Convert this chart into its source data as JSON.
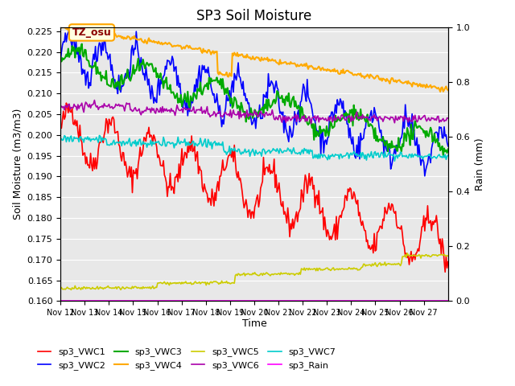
{
  "title": "SP3 Soil Moisture",
  "xlabel": "Time",
  "ylabel_left": "Soil Moisture (m3/m3)",
  "ylabel_right": "Rain (mm)",
  "ylim_left": [
    0.16,
    0.226
  ],
  "ylim_right": [
    0.0,
    1.0
  ],
  "xlim": [
    0,
    16
  ],
  "x_tick_labels": [
    "Nov 12",
    "Nov 13",
    "Nov 14",
    "Nov 15",
    "Nov 16",
    "Nov 17",
    "Nov 18",
    "Nov 19",
    "Nov 20",
    "Nov 21",
    "Nov 22",
    "Nov 23",
    "Nov 24",
    "Nov 25",
    "Nov 26",
    "Nov 27"
  ],
  "annotation_text": "TZ_osu",
  "bg_color": "#e8e8e8",
  "legend_labels": [
    "sp3_VWC1",
    "sp3_VWC2",
    "sp3_VWC3",
    "sp3_VWC4",
    "sp3_VWC5",
    "sp3_VWC6",
    "sp3_VWC7",
    "sp3_Rain"
  ],
  "colors": [
    "#ff0000",
    "#0000ff",
    "#00aa00",
    "#ffaa00",
    "#cccc00",
    "#aa00aa",
    "#00cccc",
    "#ff00ff"
  ],
  "linewidths": [
    1.2,
    1.2,
    1.5,
    1.5,
    1.2,
    1.2,
    1.2,
    1.2
  ],
  "yticks_left": [
    0.16,
    0.165,
    0.17,
    0.175,
    0.18,
    0.185,
    0.19,
    0.195,
    0.2,
    0.205,
    0.21,
    0.215,
    0.22,
    0.225
  ],
  "yticks_right": [
    0.0,
    0.2,
    0.4,
    0.6,
    0.8,
    1.0
  ]
}
